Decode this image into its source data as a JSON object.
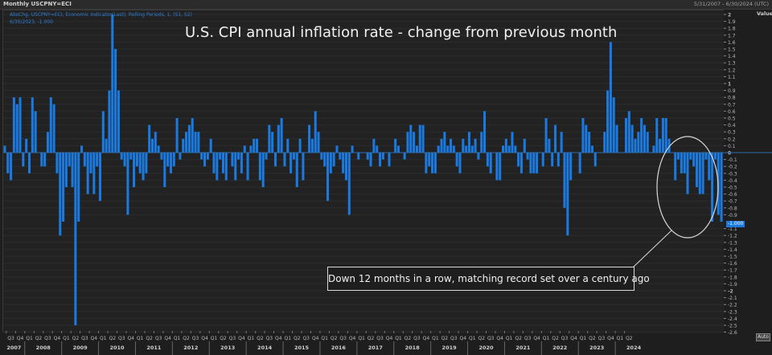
{
  "window": {
    "title": "Monthly USCPNY=ECI",
    "date_range": "5/31/2007 - 6/30/2024 (UTC)"
  },
  "legend": {
    "line1": "AbsChg, USCPNY=ECI, Economic Indicator(Last), Rolling Periods, 1, (S1, S2)",
    "line2": "6/30/2023, -1.000"
  },
  "controls": {
    "auto_label": "Auto",
    "value_axis_header": "Value",
    "current_value_badge": "-1.000"
  },
  "annotation": {
    "text": "Down 12 months in a row, matching record set over a century ago"
  },
  "colors": {
    "bar": "#1a7ae0",
    "background": "#222222",
    "zero_line": "#2e6db0",
    "annotation_border": "#d8d8d8"
  },
  "chart_data": {
    "type": "bar",
    "title": "U.S. CPI annual inflation rate - change from previous month",
    "xlabel": "",
    "ylabel": "Value",
    "ylim": [
      -2.6,
      2.0
    ],
    "grid": true,
    "legend_position": "top-left",
    "y_ticks": [
      "2",
      "1.9",
      "1.8",
      "1.7",
      "1.6",
      "1.5",
      "1.4",
      "1.3",
      "1.2",
      "1.1",
      "1",
      "0.9",
      "0.8",
      "0.7",
      "0.6",
      "0.5",
      "0.4",
      "0.3",
      "0.2",
      "0.1",
      "0",
      "-0.1",
      "-0.2",
      "-0.3",
      "-0.4",
      "-0.5",
      "-0.6",
      "-0.7",
      "-0.8",
      "-0.9",
      "-1.1",
      "-1.2",
      "-1.3",
      "-1.4",
      "-1.5",
      "-1.6",
      "-1.7",
      "-1.8",
      "-1.9",
      "-2",
      "-2.1",
      "-2.2",
      "-2.3",
      "-2.4",
      "-2.5",
      "-2.6"
    ],
    "x_start": "2007-06",
    "x_end": "2023-06",
    "frequency": "monthly",
    "x_axis_quarters": [
      "Q3",
      "Q4",
      "Q1",
      "Q2",
      "Q3",
      "Q4",
      "Q1",
      "Q2",
      "Q3",
      "Q4",
      "Q1",
      "Q2",
      "Q3",
      "Q4",
      "Q1",
      "Q2",
      "Q3",
      "Q4",
      "Q1",
      "Q2",
      "Q3",
      "Q4",
      "Q1",
      "Q2",
      "Q3",
      "Q4",
      "Q1",
      "Q2",
      "Q3",
      "Q4",
      "Q1",
      "Q2",
      "Q3",
      "Q4",
      "Q1",
      "Q2",
      "Q3",
      "Q4",
      "Q1",
      "Q2",
      "Q3",
      "Q4",
      "Q1",
      "Q2",
      "Q3",
      "Q4",
      "Q1",
      "Q2",
      "Q3",
      "Q4",
      "Q1",
      "Q2",
      "Q3",
      "Q4",
      "Q1",
      "Q2",
      "Q3",
      "Q4",
      "Q1",
      "Q2",
      "Q3",
      "Q4",
      "Q1",
      "Q2",
      "Q3",
      "Q4",
      "Q1",
      "Q2"
    ],
    "x_axis_years": [
      "2007",
      "2008",
      "2009",
      "2010",
      "2011",
      "2012",
      "2013",
      "2014",
      "2015",
      "2016",
      "2017",
      "2018",
      "2019",
      "2020",
      "2021",
      "2022",
      "2023",
      "2024"
    ],
    "values": [
      0.1,
      -0.3,
      -0.4,
      0.8,
      0.7,
      0.8,
      -0.2,
      0.2,
      -0.3,
      0.8,
      0.6,
      0.0,
      -0.2,
      -0.2,
      0.3,
      0.8,
      0.7,
      -0.3,
      -1.2,
      -1.0,
      -0.5,
      -0.2,
      -0.5,
      -2.5,
      -1.0,
      0.1,
      -0.2,
      -0.6,
      -0.3,
      -0.6,
      -0.2,
      -0.7,
      0.6,
      0.2,
      0.9,
      2.0,
      1.5,
      0.9,
      -0.1,
      -0.2,
      -0.9,
      -0.1,
      -0.5,
      -0.2,
      -0.3,
      -0.4,
      -0.3,
      0.4,
      0.2,
      0.3,
      0.1,
      -0.1,
      -0.5,
      -0.2,
      -0.3,
      -0.2,
      0.5,
      -0.1,
      0.2,
      0.3,
      0.4,
      0.5,
      0.3,
      0.3,
      -0.1,
      -0.2,
      -0.1,
      0.2,
      -0.3,
      -0.4,
      -0.1,
      -0.3,
      -0.4,
      0.0,
      -0.2,
      -0.4,
      -0.1,
      -0.3,
      0.1,
      -0.4,
      0.1,
      0.2,
      0.2,
      -0.4,
      -0.5,
      -0.1,
      0.4,
      0.3,
      -0.2,
      0.4,
      0.5,
      -0.2,
      0.2,
      -0.3,
      -0.1,
      -0.5,
      0.2,
      -0.4,
      0.0,
      0.4,
      0.2,
      0.6,
      0.3,
      -0.1,
      -0.2,
      -0.7,
      -0.3,
      -0.2,
      0.1,
      -0.1,
      -0.3,
      -0.4,
      -0.9,
      0.1,
      0.0,
      -0.1,
      0.0,
      0.0,
      -0.1,
      -0.2,
      0.2,
      0.1,
      -0.2,
      -0.1,
      0.0,
      -0.2,
      0.0,
      0.2,
      0.1,
      0.0,
      -0.1,
      0.3,
      0.4,
      0.3,
      0.1,
      0.4,
      0.4,
      -0.3,
      -0.2,
      -0.3,
      -0.3,
      0.1,
      0.2,
      0.3,
      0.1,
      0.2,
      0.1,
      -0.2,
      -0.3,
      0.2,
      0.1,
      0.3,
      0.1,
      0.2,
      -0.1,
      0.3,
      0.6,
      -0.2,
      -0.3,
      0.0,
      -0.4,
      -0.4,
      0.1,
      0.2,
      0.1,
      0.3,
      0.1,
      -0.2,
      -0.3,
      0.2,
      -0.1,
      -0.3,
      -0.3,
      -0.3,
      0.0,
      -0.2,
      0.5,
      0.2,
      -0.2,
      0.4,
      -0.2,
      0.3,
      -0.8,
      -1.2,
      -0.4,
      0.0,
      0.0,
      -0.3,
      0.5,
      0.4,
      0.3,
      0.1,
      -0.2,
      0.0,
      0.0,
      0.3,
      0.9,
      1.6,
      0.8,
      0.4,
      0.0,
      0.0,
      0.5,
      0.6,
      0.4,
      0.2,
      0.3,
      0.5,
      0.4,
      0.3,
      0.0,
      0.1,
      0.5,
      0.2,
      0.5,
      0.5,
      0.2,
      0.0,
      -0.4,
      -0.1,
      -0.3,
      -0.3,
      -0.6,
      -0.1,
      -0.2,
      -0.5,
      -0.6,
      -0.6,
      -0.1,
      -0.4,
      -1.0,
      -0.1,
      -0.9,
      -1.0
    ]
  }
}
